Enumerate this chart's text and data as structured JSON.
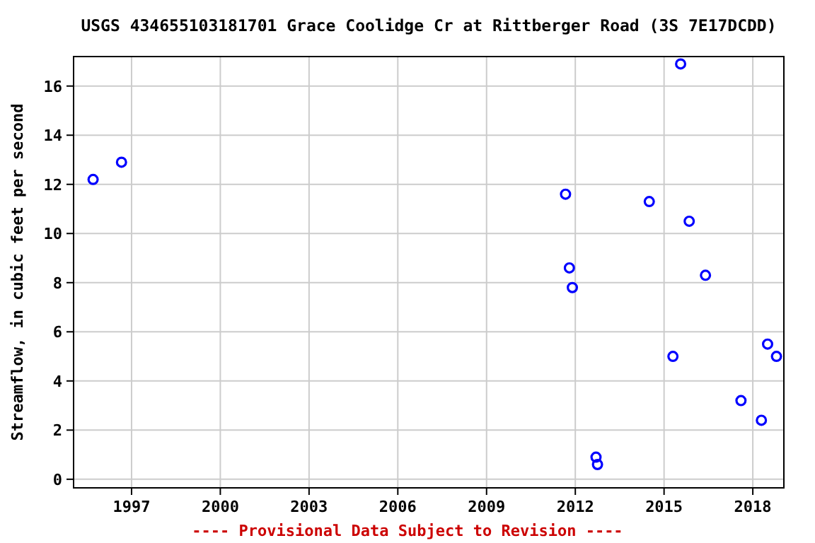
{
  "chart_data": {
    "type": "scatter",
    "title": "USGS 434655103181701 Grace Coolidge Cr at Rittberger Road (3S 7E17DCDD)",
    "ylabel": "Streamflow, in cubic feet per second",
    "annotations": [
      "---- Provisional Data Subject to Revision ----"
    ],
    "series": [
      {
        "color": "#0000ff",
        "x": [
          1995.7,
          1996.66,
          2011.67,
          2011.8,
          2011.9,
          2012.7,
          2012.75,
          2014.5,
          2015.3,
          2015.56,
          2015.85,
          2016.4,
          2017.6,
          2018.29,
          2018.5,
          2018.8
        ],
        "values": [
          12.2,
          12.9,
          11.6,
          8.6,
          7.8,
          0.9,
          0.6,
          11.3,
          5.0,
          16.9,
          10.5,
          8.3,
          3.2,
          2.4,
          5.5,
          5.0
        ]
      }
    ],
    "xlim": [
      1995.04,
      2019.05
    ],
    "xticks": [
      1997,
      2000,
      2003,
      2006,
      2009,
      2012,
      2015,
      2018
    ],
    "ylim": [
      -0.35,
      17.2
    ],
    "yticks": [
      0,
      2,
      4,
      6,
      8,
      10,
      12,
      14,
      16
    ],
    "grid": true,
    "marker": "circle"
  }
}
